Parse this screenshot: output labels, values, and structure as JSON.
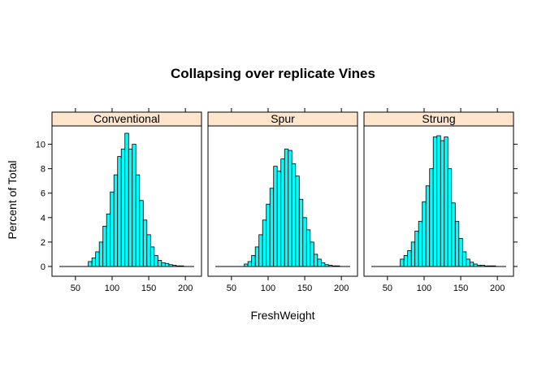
{
  "chart_data": {
    "type": "bar",
    "title": "Collapsing over replicate Vines",
    "xlabel": "FreshWeight",
    "ylabel": "Percent of Total",
    "xlim": [
      18,
      222
    ],
    "ylim": [
      -0.8,
      11.5
    ],
    "x_ticks": [
      50,
      100,
      150,
      200
    ],
    "y_ticks": [
      0,
      2,
      4,
      6,
      8,
      10
    ],
    "bin_start": 67.5,
    "bin_width": 5,
    "baseline_range": [
      28,
      212
    ],
    "strip_color": "#ffe5cc",
    "bar_color": "#00ffff",
    "panels": [
      {
        "name": "Conventional",
        "values": [
          0.4,
          0.7,
          1.2,
          2.0,
          3.3,
          4.3,
          6.1,
          7.5,
          9.0,
          9.6,
          10.9,
          9.6,
          10.0,
          7.5,
          5.4,
          3.8,
          2.6,
          1.6,
          0.9,
          0.5,
          0.3,
          0.25,
          0.15,
          0.1,
          0.05,
          0.05
        ]
      },
      {
        "name": "Spur",
        "values": [
          0.2,
          0.4,
          0.9,
          1.6,
          2.6,
          3.8,
          5.1,
          6.4,
          8.2,
          7.8,
          8.8,
          9.6,
          9.5,
          8.4,
          7.4,
          5.5,
          4.0,
          3.0,
          2.0,
          1.0,
          0.6,
          0.3,
          0.15,
          0.1,
          0.05,
          0.05
        ]
      },
      {
        "name": "Strung",
        "values": [
          0.6,
          0.9,
          1.3,
          2.0,
          2.9,
          3.7,
          5.3,
          6.6,
          8.0,
          10.6,
          10.7,
          10.3,
          10.6,
          8.0,
          5.2,
          3.7,
          2.3,
          1.2,
          0.6,
          0.35,
          0.2,
          0.1,
          0.1,
          0.05,
          0.05,
          0.05
        ]
      }
    ]
  }
}
